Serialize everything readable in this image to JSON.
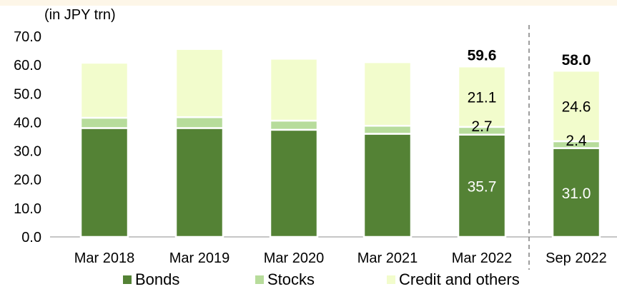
{
  "chart_data": {
    "type": "bar",
    "stacked": true,
    "unit_label": "(in JPY trn)",
    "title": "",
    "xlabel": "",
    "ylabel": "",
    "ylim": [
      0,
      70
    ],
    "y_ticks": [
      "0.0",
      "10.0",
      "20.0",
      "30.0",
      "40.0",
      "50.0",
      "60.0",
      "70.0"
    ],
    "categories": [
      "Mar 2018",
      "Mar 2019",
      "Mar 2020",
      "Mar 2021",
      "Mar 2022",
      "Sep 2022"
    ],
    "series": [
      {
        "name": "Bonds",
        "color": "#548235",
        "values": [
          38.0,
          38.0,
          37.4,
          36.0,
          35.7,
          31.0
        ]
      },
      {
        "name": "Stocks",
        "color": "#b7dc9b",
        "values": [
          3.6,
          3.8,
          3.2,
          2.8,
          2.7,
          2.4
        ]
      },
      {
        "name": "Credit and others",
        "color": "#f2fccc",
        "values": [
          19.2,
          23.8,
          21.6,
          22.2,
          21.1,
          24.6
        ]
      }
    ],
    "totals": [
      {
        "category": "Mar 2022",
        "label": "59.6",
        "value": 59.6
      },
      {
        "category": "Sep 2022",
        "label": "58.0",
        "value": 58.0
      }
    ],
    "segment_labels": [
      {
        "category": "Mar 2022",
        "series": "Bonds",
        "text": "35.7",
        "color": "#ffffff"
      },
      {
        "category": "Mar 2022",
        "series": "Stocks",
        "text": "2.7",
        "color": "#000000"
      },
      {
        "category": "Mar 2022",
        "series": "Credit and others",
        "text": "21.1",
        "color": "#000000"
      },
      {
        "category": "Sep 2022",
        "series": "Bonds",
        "text": "31.0",
        "color": "#ffffff"
      },
      {
        "category": "Sep 2022",
        "series": "Stocks",
        "text": "2.4",
        "color": "#000000"
      },
      {
        "category": "Sep 2022",
        "series": "Credit and others",
        "text": "24.6",
        "color": "#000000"
      }
    ],
    "divider_before": "Sep 2022",
    "legend_placement": "bottom",
    "grid": false
  }
}
